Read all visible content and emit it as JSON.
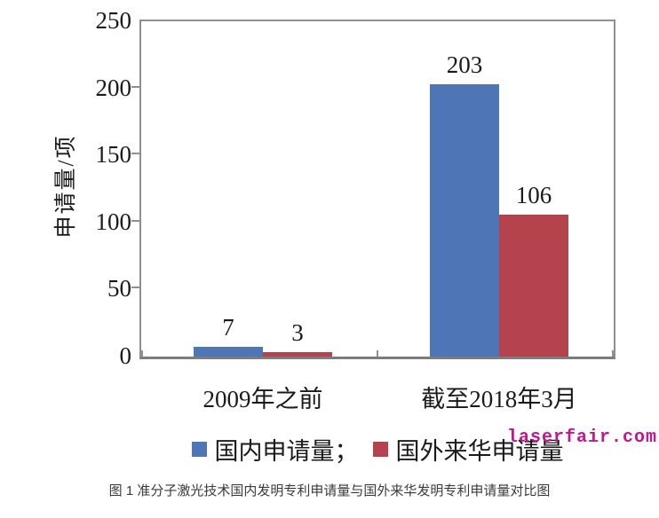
{
  "chart_data": {
    "type": "bar",
    "categories": [
      "2009年之前",
      "截至2018年3月"
    ],
    "series": [
      {
        "name": "国内申请量",
        "color": "#4e76b6",
        "values": [
          7,
          203
        ]
      },
      {
        "name": "国外来华申请量",
        "color": "#b5434e",
        "values": [
          3,
          106
        ]
      }
    ],
    "title": "",
    "xlabel": "",
    "ylabel": "申请量/项",
    "ylim": [
      0,
      250
    ],
    "yticks": [
      0,
      50,
      100,
      150,
      200,
      250
    ],
    "grid": false,
    "bar_value_labels": true,
    "legend_position": "bottom"
  },
  "legend": {
    "items": [
      {
        "label": "国内申请量；",
        "color": "#4e76b6"
      },
      {
        "label": "国外来华申请量",
        "color": "#b5434e"
      }
    ]
  },
  "watermark": "laserfair.com",
  "caption": "图 1 准分子激光技术国内发明专利申请量与国外来华发明专利申请量对比图",
  "colors": {
    "axis": "#8f8f8f",
    "text": "#1a1a1a",
    "series_blue": "#4e76b6",
    "series_red": "#b5434e",
    "watermark": "#c6148f",
    "caption_text": "#3a3a3a"
  }
}
